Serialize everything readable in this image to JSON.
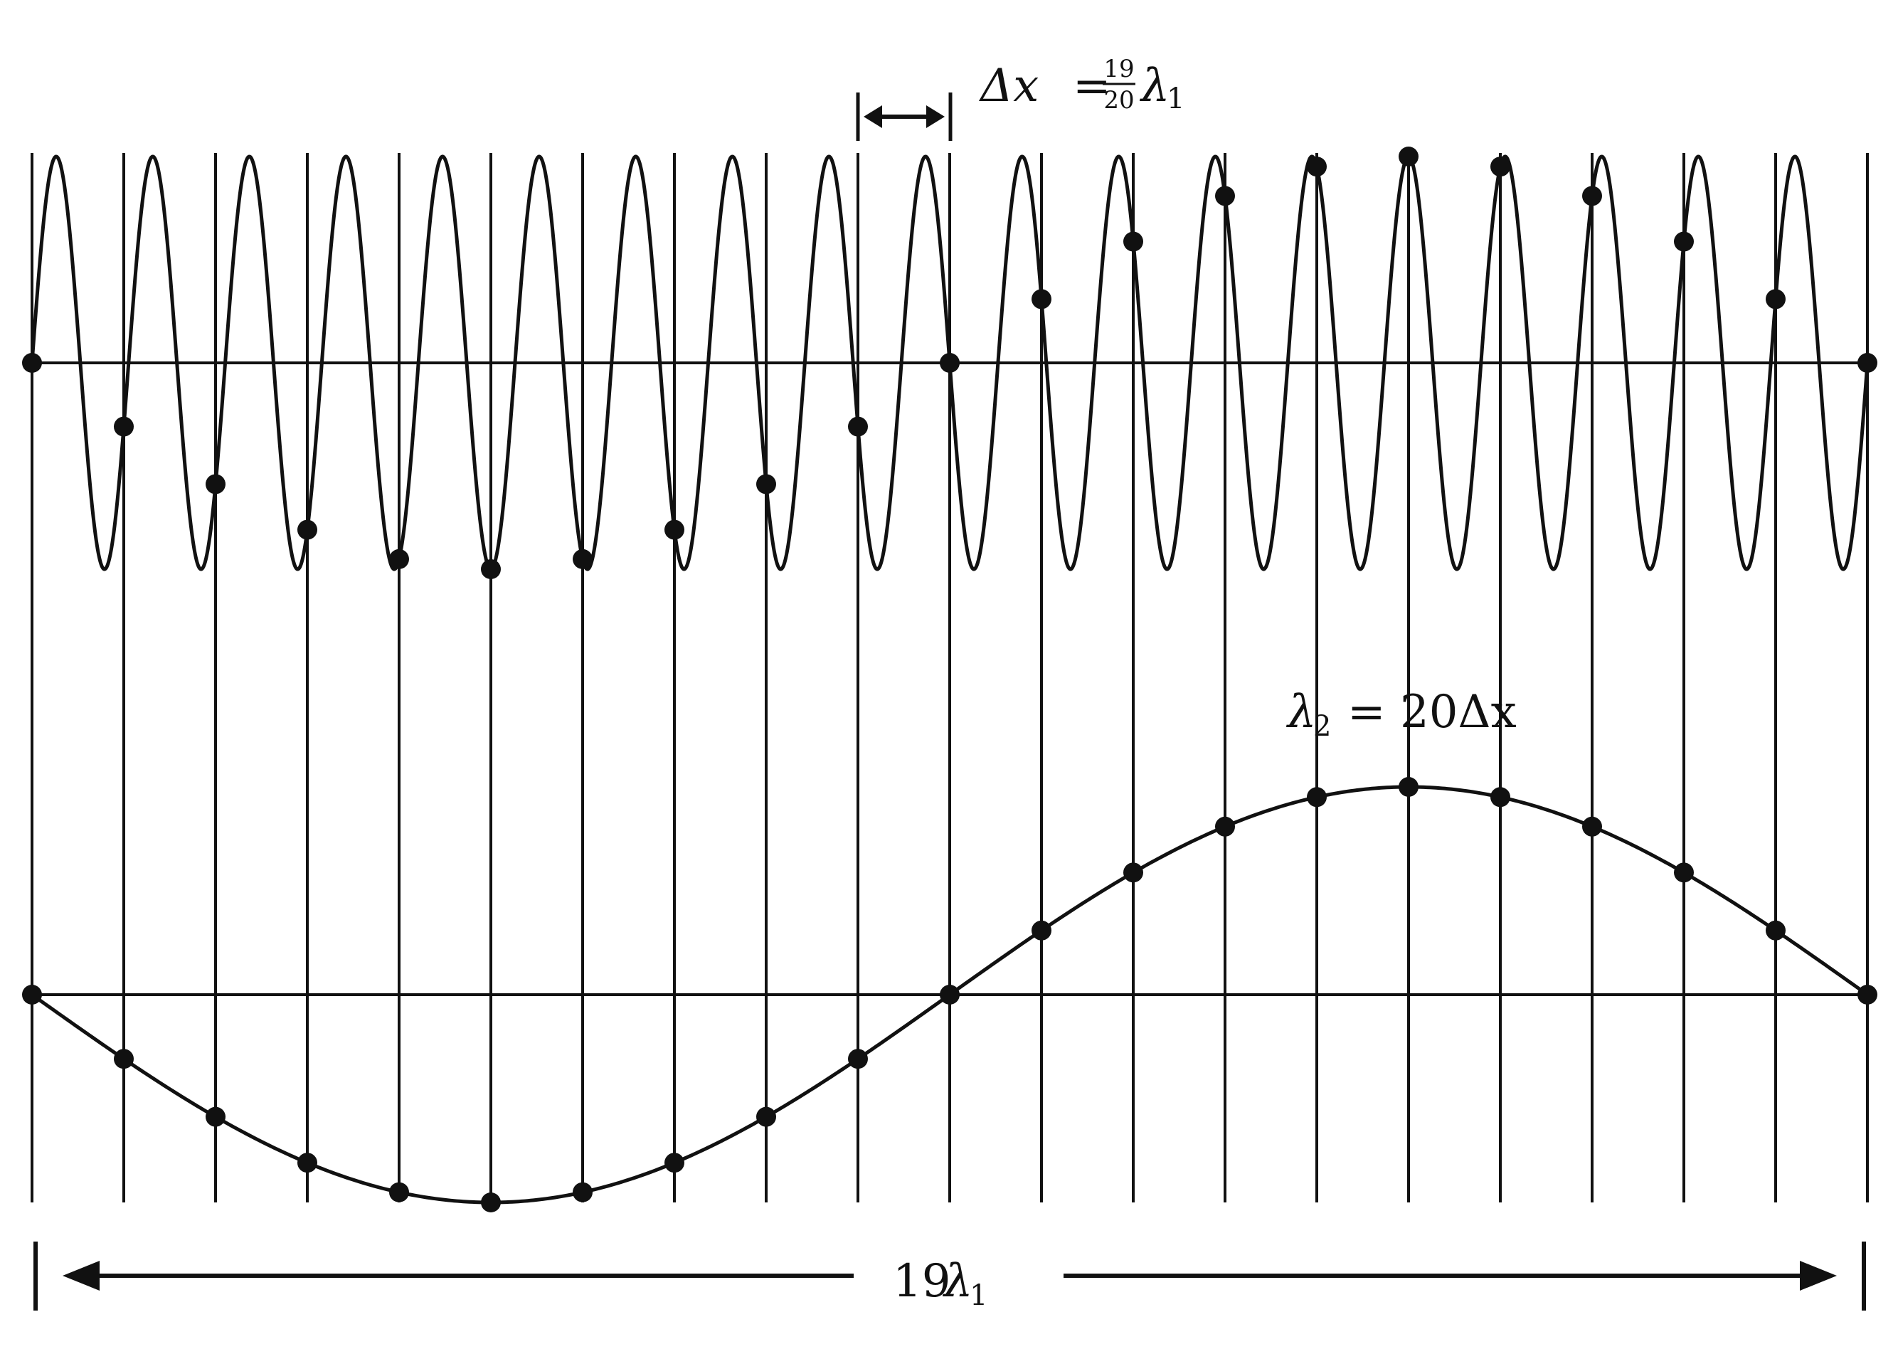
{
  "labels": {
    "delta_x": {
      "lhs": "Δx",
      "eq": "=",
      "frac_num": "19",
      "frac_den": "20",
      "lambda": "λ",
      "lambda_sub": "1"
    },
    "lambda2": {
      "lambda": "λ",
      "sub": "2",
      "rhs": "= 20Δx"
    },
    "span": {
      "num": "19",
      "lambda": "λ",
      "sub": "1"
    }
  },
  "chart_data": {
    "type": "line",
    "sample_count": 21,
    "sampling_interval_lambda1": 0.95,
    "span_lambda1": 19,
    "series": [
      {
        "wavelength_lambda1": 1,
        "cycles": 19,
        "samples_shown": true
      },
      {
        "wavelength_lambda1": 19,
        "cycles": 1,
        "samples_shown": true
      }
    ]
  },
  "style": {
    "ink": "#111111",
    "background": "#ffffff"
  }
}
